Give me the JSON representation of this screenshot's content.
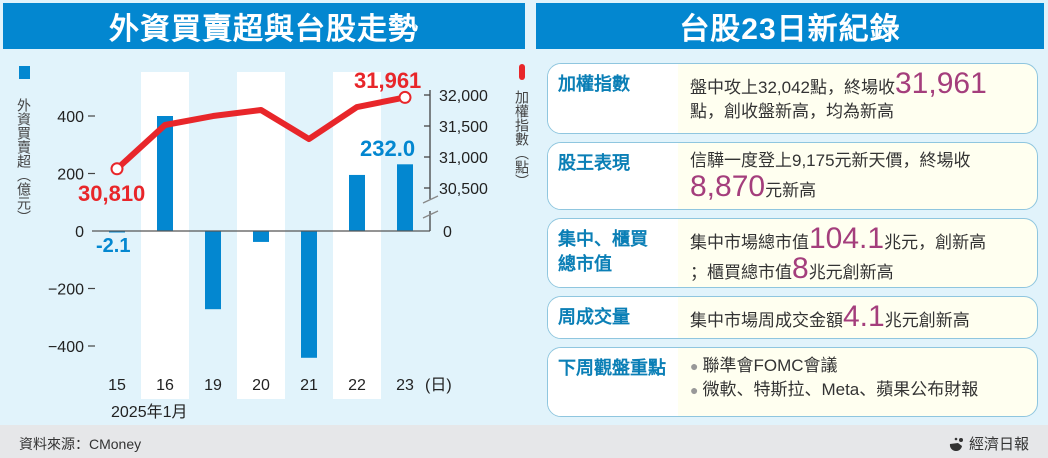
{
  "header": {
    "left_title": "外資買賣超與台股走勢",
    "right_title": "台股23日新紀錄"
  },
  "chart_data": {
    "type": "bar+line",
    "title": "外資買賣超與台股走勢",
    "categories": [
      "15",
      "16",
      "19",
      "20",
      "21",
      "22",
      "23"
    ],
    "x_unit_label": "(日)",
    "x_caption": "2025年1月",
    "series": [
      {
        "name": "外資買賣超（億元）",
        "type": "bar",
        "axis": "left",
        "color": "#0387d0",
        "values": [
          -2.1,
          400,
          -272,
          -38,
          -441,
          195,
          232.0
        ]
      },
      {
        "name": "加權指數（點）",
        "type": "line",
        "axis": "right",
        "color": "#e8262a",
        "values": [
          30810,
          31516,
          31661,
          31758,
          31290,
          31806,
          31961
        ]
      }
    ],
    "left_axis": {
      "label": "外資買賣超（億元）",
      "ticks": [
        "400",
        "200",
        "0",
        "−200",
        "−400"
      ],
      "ylim": [
        -480,
        520
      ]
    },
    "right_axis": {
      "label": "加權指數（點）",
      "ticks": [
        "32,000",
        "31,500",
        "31,000",
        "30,500",
        "0"
      ],
      "axis_break": true
    },
    "annotations": [
      {
        "text": "30,810",
        "color": "#e8262a",
        "at": "15"
      },
      {
        "text": "31,961",
        "color": "#e8262a",
        "at": "23"
      },
      {
        "text": "-2.1",
        "color": "#0387d0",
        "at": "15"
      },
      {
        "text": "232.0",
        "color": "#0387d0",
        "at": "23"
      }
    ]
  },
  "cards": [
    {
      "label": "加權指數",
      "line1_pre": "盤中攻上32,042點，終場收",
      "line1_big": "31,961",
      "line2": "點，創收盤新高，均為新高"
    },
    {
      "label": "股王表現",
      "line1": "信驊一度登上9,175元新天價，終場收",
      "line2_big": "8,870",
      "line2_post": "元新高"
    },
    {
      "label_line1": "集中、櫃買",
      "label_line2": "總市值",
      "line1_pre": "集中市場總市值",
      "line1_big": "104.1",
      "line1_post": "兆元，創新高",
      "line2_pre": "；櫃買總市值",
      "line2_big": "8",
      "line2_post": "兆元創新高"
    },
    {
      "label": "周成交量",
      "line1_pre": "集中市場周成交金額",
      "line1_big": "4.1",
      "line1_post": "兆元創新高"
    },
    {
      "label": "下周觀盤重點",
      "bullets": [
        "聯準會FOMC會議",
        "微軟、特斯拉、Meta、蘋果公布財報"
      ]
    }
  ],
  "footer": {
    "source": "資料來源：CMoney",
    "brand": "經濟日報"
  }
}
